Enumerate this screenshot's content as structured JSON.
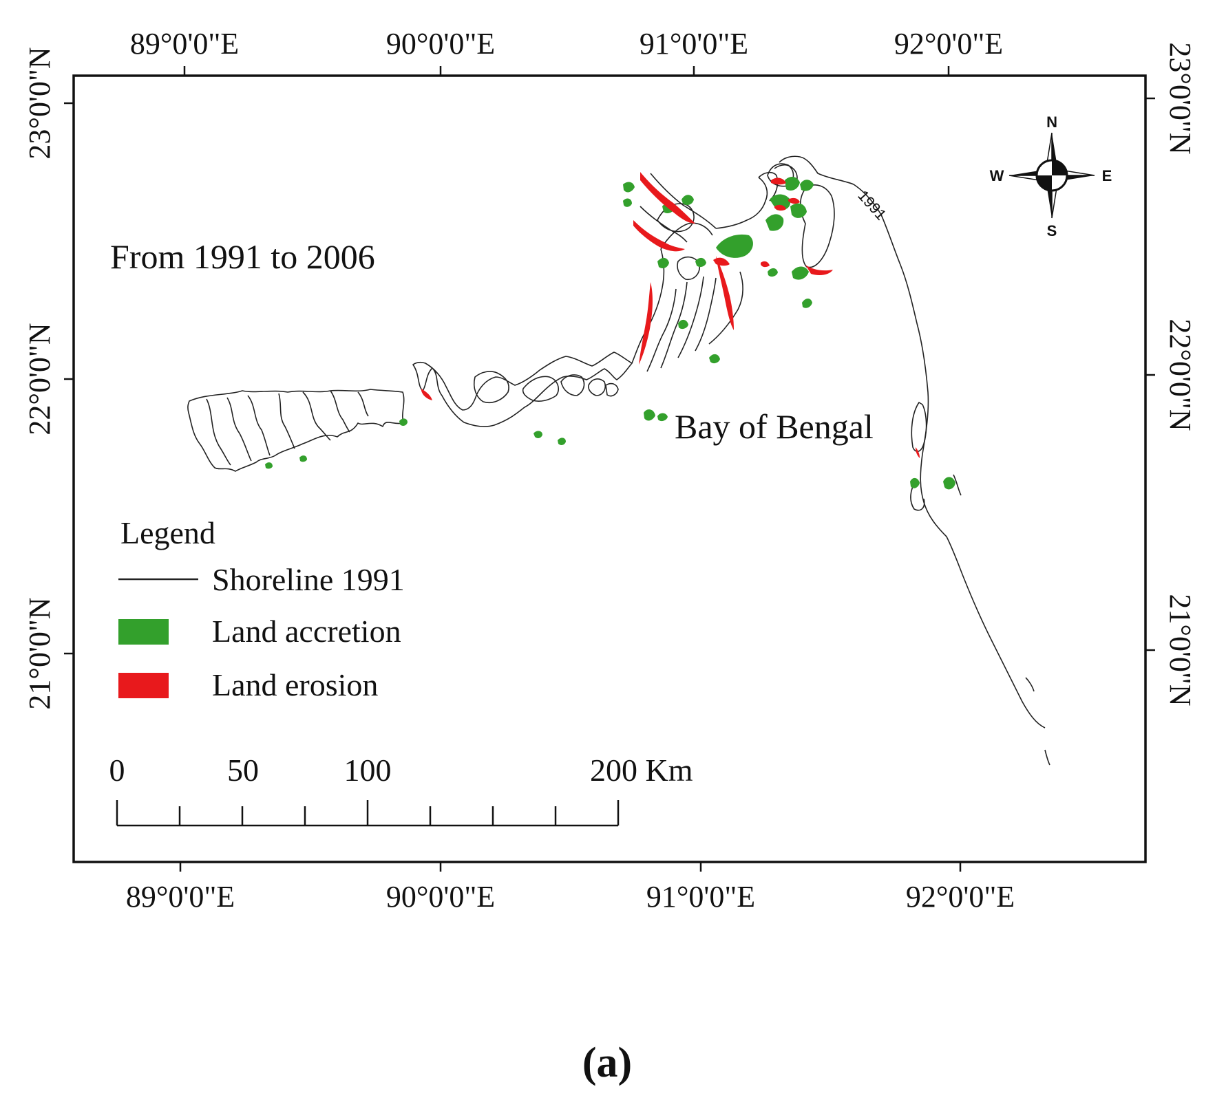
{
  "map": {
    "title": "From 1991 to 2006",
    "sea_label": "Bay of Bengal",
    "shoreline_year_label": "1991",
    "panel_label": "(a)",
    "top_ticks": [
      "89°0'0\"E",
      "90°0'0\"E",
      "91°0'0\"E",
      "92°0'0\"E"
    ],
    "bottom_ticks": [
      "89°0'0\"E",
      "90°0'0\"E",
      "91°0'0\"E",
      "92°0'0\"E"
    ],
    "left_ticks": [
      "23°0'0\"N",
      "22°0'0\"N",
      "21°0'0\"N"
    ],
    "right_ticks": [
      "23°0'0\"N",
      "22°0'0\"N",
      "21°0'0\"N"
    ]
  },
  "legend": {
    "heading": "Legend",
    "items": [
      {
        "label": "Shoreline 1991",
        "symbol": "line",
        "color": "#222222"
      },
      {
        "label": "Land accretion",
        "symbol": "patch",
        "color": "#33a02c"
      },
      {
        "label": "Land erosion",
        "symbol": "patch",
        "color": "#e8191c"
      }
    ]
  },
  "scalebar": {
    "labels": [
      "0",
      "50",
      "100",
      "200 Km"
    ]
  },
  "compass": {
    "n": "N",
    "s": "S",
    "e": "E",
    "w": "W"
  }
}
